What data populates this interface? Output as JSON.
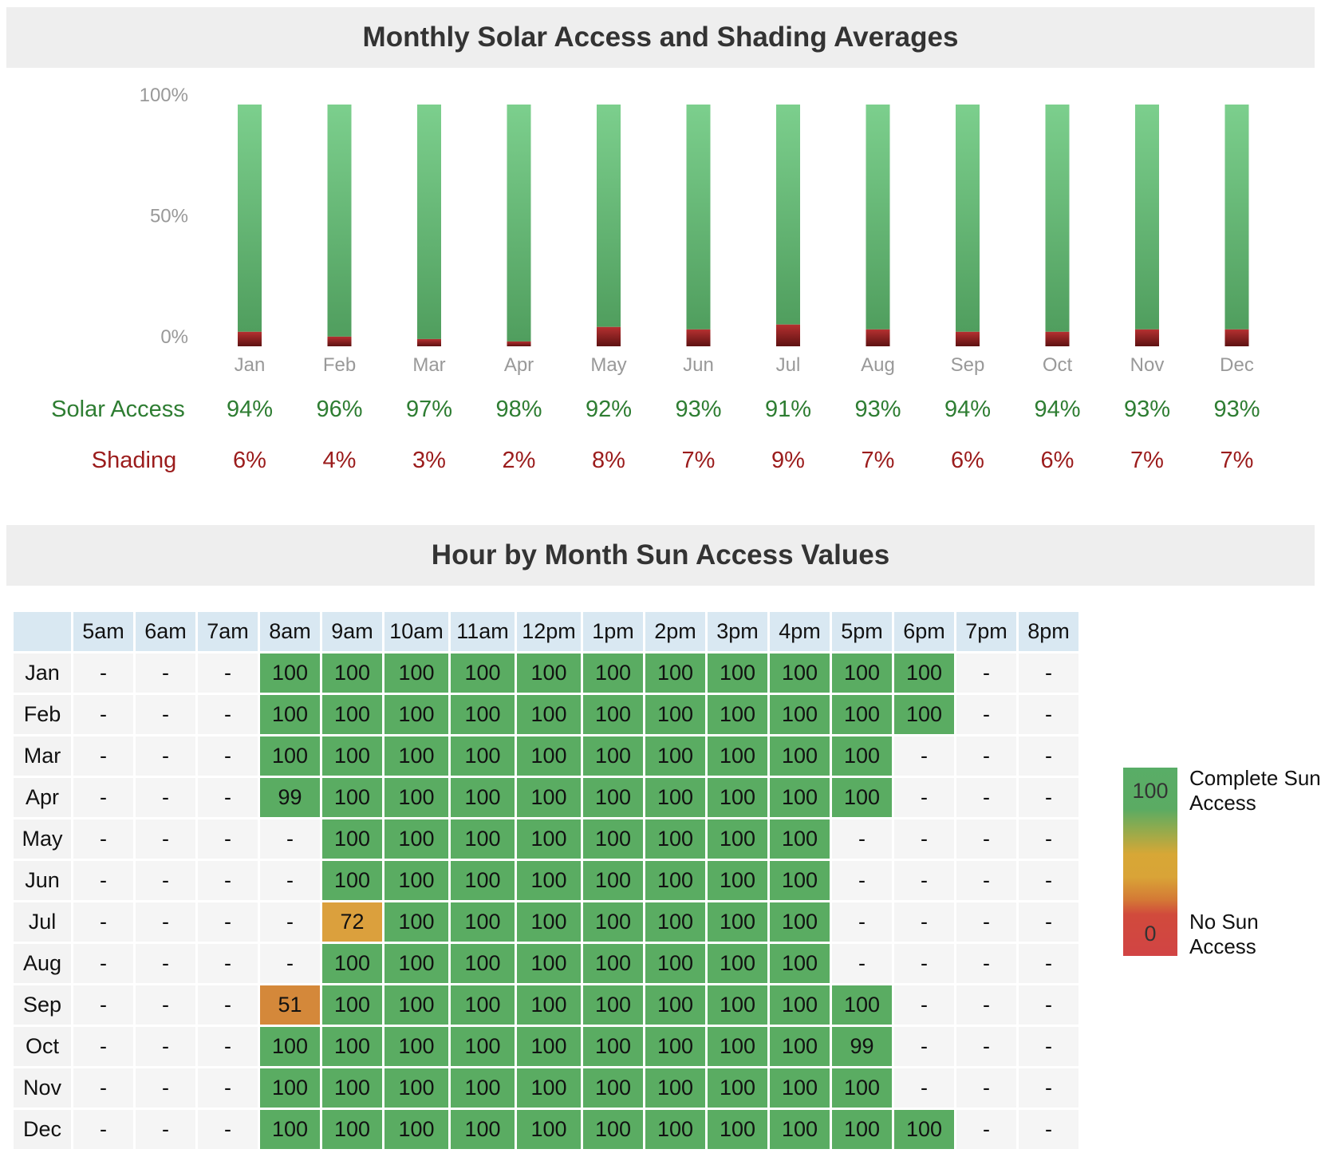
{
  "section1": {
    "title": "Monthly Solar Access and Shading Averages"
  },
  "section2": {
    "title": "Hour by Month Sun Access Values"
  },
  "colors": {
    "solar": "#2e7d32",
    "shading": "#9b1c1c",
    "bar_green_top": "#7ccf8d",
    "bar_green_bottom": "#509e5e",
    "bar_red_top": "#b53030",
    "bar_red_bottom": "#5e1212",
    "cell_full": "#5aac62",
    "cell_high": "#dba03d",
    "cell_mid": "#d4883a"
  },
  "chart_data": [
    {
      "type": "bar",
      "stacked": true,
      "title": "Monthly Solar Access and Shading Averages",
      "categories": [
        "Jan",
        "Feb",
        "Mar",
        "Apr",
        "May",
        "Jun",
        "Jul",
        "Aug",
        "Sep",
        "Oct",
        "Nov",
        "Dec"
      ],
      "series": [
        {
          "name": "Solar Access",
          "values": [
            94,
            96,
            97,
            98,
            92,
            93,
            91,
            93,
            94,
            94,
            93,
            93
          ]
        },
        {
          "name": "Shading",
          "values": [
            6,
            4,
            3,
            2,
            8,
            7,
            9,
            7,
            6,
            6,
            7,
            7
          ]
        }
      ],
      "row_labels": {
        "solar": "Solar Access",
        "shading": "Shading"
      },
      "value_labels": {
        "solar": [
          "94%",
          "96%",
          "97%",
          "98%",
          "92%",
          "93%",
          "91%",
          "93%",
          "94%",
          "94%",
          "93%",
          "93%"
        ],
        "shading": [
          "6%",
          "4%",
          "3%",
          "2%",
          "8%",
          "7%",
          "9%",
          "7%",
          "6%",
          "6%",
          "7%",
          "7%"
        ]
      },
      "yticks": [
        "100%",
        "50%",
        "0%"
      ],
      "ylim": [
        0,
        100
      ],
      "xlabel": "",
      "ylabel": ""
    },
    {
      "type": "heatmap",
      "title": "Hour by Month Sun Access Values",
      "hours": [
        "5am",
        "6am",
        "7am",
        "8am",
        "9am",
        "10am",
        "11am",
        "12pm",
        "1pm",
        "2pm",
        "3pm",
        "4pm",
        "5pm",
        "6pm",
        "7pm",
        "8pm"
      ],
      "months": [
        "Jan",
        "Feb",
        "Mar",
        "Apr",
        "May",
        "Jun",
        "Jul",
        "Aug",
        "Sep",
        "Oct",
        "Nov",
        "Dec"
      ],
      "values": [
        [
          "-",
          "-",
          "-",
          "100",
          "100",
          "100",
          "100",
          "100",
          "100",
          "100",
          "100",
          "100",
          "100",
          "100",
          "-",
          "-"
        ],
        [
          "-",
          "-",
          "-",
          "100",
          "100",
          "100",
          "100",
          "100",
          "100",
          "100",
          "100",
          "100",
          "100",
          "100",
          "-",
          "-"
        ],
        [
          "-",
          "-",
          "-",
          "100",
          "100",
          "100",
          "100",
          "100",
          "100",
          "100",
          "100",
          "100",
          "100",
          "-",
          "-",
          "-"
        ],
        [
          "-",
          "-",
          "-",
          "99",
          "100",
          "100",
          "100",
          "100",
          "100",
          "100",
          "100",
          "100",
          "100",
          "-",
          "-",
          "-"
        ],
        [
          "-",
          "-",
          "-",
          "-",
          "100",
          "100",
          "100",
          "100",
          "100",
          "100",
          "100",
          "100",
          "-",
          "-",
          "-",
          "-"
        ],
        [
          "-",
          "-",
          "-",
          "-",
          "100",
          "100",
          "100",
          "100",
          "100",
          "100",
          "100",
          "100",
          "-",
          "-",
          "-",
          "-"
        ],
        [
          "-",
          "-",
          "-",
          "-",
          "72",
          "100",
          "100",
          "100",
          "100",
          "100",
          "100",
          "100",
          "-",
          "-",
          "-",
          "-"
        ],
        [
          "-",
          "-",
          "-",
          "-",
          "100",
          "100",
          "100",
          "100",
          "100",
          "100",
          "100",
          "100",
          "-",
          "-",
          "-",
          "-"
        ],
        [
          "-",
          "-",
          "-",
          "51",
          "100",
          "100",
          "100",
          "100",
          "100",
          "100",
          "100",
          "100",
          "100",
          "-",
          "-",
          "-"
        ],
        [
          "-",
          "-",
          "-",
          "100",
          "100",
          "100",
          "100",
          "100",
          "100",
          "100",
          "100",
          "100",
          "99",
          "-",
          "-",
          "-"
        ],
        [
          "-",
          "-",
          "-",
          "100",
          "100",
          "100",
          "100",
          "100",
          "100",
          "100",
          "100",
          "100",
          "100",
          "-",
          "-",
          "-"
        ],
        [
          "-",
          "-",
          "-",
          "100",
          "100",
          "100",
          "100",
          "100",
          "100",
          "100",
          "100",
          "100",
          "100",
          "100",
          "-",
          "-"
        ]
      ],
      "legend": {
        "max_value": "100",
        "min_value": "0",
        "max_label": "Complete Sun Access",
        "min_label": "No Sun Access"
      }
    }
  ]
}
